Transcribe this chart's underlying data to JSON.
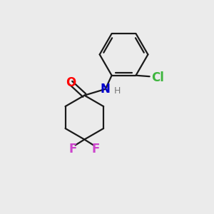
{
  "bg_color": "#ebebeb",
  "bond_color": "#1a1a1a",
  "atom_colors": {
    "O": "#ff0000",
    "N": "#0000cc",
    "H": "#777777",
    "Cl": "#3db53d",
    "F": "#cc44cc"
  },
  "bond_width": 1.6,
  "font_size_atom": 12,
  "font_size_h": 9
}
